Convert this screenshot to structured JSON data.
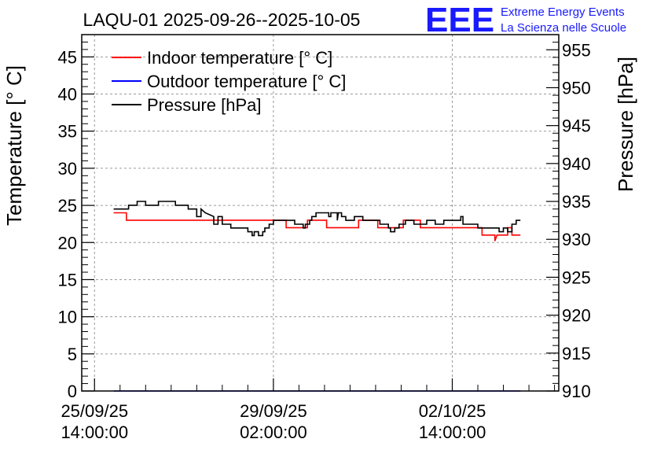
{
  "chart_data": {
    "type": "line",
    "title": "LAQU-01 2025-09-26--2025-10-05",
    "logo": {
      "letters": "EEE",
      "line1": "Extreme Energy Events",
      "line2": "La Scienza nelle Scuole"
    },
    "ylabel": "Temperature [° C]",
    "y2label": "Pressure [hPa]",
    "ylim": [
      0,
      48
    ],
    "y2lim": [
      910,
      957
    ],
    "yticks": [
      0,
      5,
      10,
      15,
      20,
      25,
      30,
      35,
      40,
      45
    ],
    "y2ticks": [
      910,
      915,
      920,
      925,
      930,
      935,
      940,
      945,
      950,
      955
    ],
    "xlim_hours": [
      -6,
      218
    ],
    "xticks": [
      {
        "hours": 0,
        "line1": "25/09/25",
        "line2": "14:00:00"
      },
      {
        "hours": 84,
        "line1": "29/09/25",
        "line2": "02:00:00"
      },
      {
        "hours": 168,
        "line1": "02/10/25",
        "line2": "14:00:00"
      }
    ],
    "grid": true,
    "legend": {
      "placement": "top-left",
      "entries": [
        {
          "label": "Indoor temperature [° C]",
          "color": "#ff0000"
        },
        {
          "label": "Outdoor temperature [° C]",
          "color": "#0000ff"
        },
        {
          "label": "Pressure [hPa]",
          "color": "#000000"
        }
      ]
    },
    "series": [
      {
        "name": "Indoor temperature [° C]",
        "axis": "left",
        "color": "#ff0000",
        "points": [
          [
            9,
            24
          ],
          [
            15,
            24
          ],
          [
            15,
            23
          ],
          [
            58,
            23
          ],
          [
            90,
            23
          ],
          [
            90,
            22
          ],
          [
            100,
            22
          ],
          [
            100,
            23
          ],
          [
            109,
            23
          ],
          [
            109,
            22
          ],
          [
            124,
            22
          ],
          [
            124,
            23
          ],
          [
            133,
            23
          ],
          [
            133,
            22
          ],
          [
            145,
            22
          ],
          [
            145,
            23
          ],
          [
            153,
            23
          ],
          [
            153,
            22
          ],
          [
            182,
            22
          ],
          [
            182,
            21
          ],
          [
            188,
            21
          ],
          [
            188,
            20.2
          ],
          [
            189,
            21
          ],
          [
            194,
            21
          ],
          [
            194,
            22
          ],
          [
            196,
            22
          ],
          [
            196,
            21
          ],
          [
            200,
            21
          ]
        ]
      },
      {
        "name": "Outdoor temperature [° C]",
        "axis": "left",
        "color": "#0000ff",
        "points": [
          [
            9,
            0
          ],
          [
            200,
            0
          ]
        ]
      },
      {
        "name": "Pressure [hPa]",
        "axis": "right",
        "color": "#000000",
        "points": [
          [
            9,
            934
          ],
          [
            16,
            934
          ],
          [
            16,
            934.5
          ],
          [
            20,
            934.5
          ],
          [
            20,
            935
          ],
          [
            24,
            935
          ],
          [
            24,
            934.5
          ],
          [
            30,
            934.5
          ],
          [
            30,
            935
          ],
          [
            38,
            935
          ],
          [
            38,
            934.5
          ],
          [
            44,
            934.5
          ],
          [
            44,
            934
          ],
          [
            48,
            934
          ],
          [
            48,
            933
          ],
          [
            50,
            933
          ],
          [
            50,
            934
          ],
          [
            52,
            933.5
          ],
          [
            56,
            933
          ],
          [
            56,
            932
          ],
          [
            58,
            932
          ],
          [
            58,
            933
          ],
          [
            60,
            933
          ],
          [
            60,
            932
          ],
          [
            64,
            932
          ],
          [
            64,
            931.5
          ],
          [
            72,
            931.5
          ],
          [
            72,
            931
          ],
          [
            74,
            931
          ],
          [
            74,
            930.5
          ],
          [
            75,
            930.5
          ],
          [
            75,
            931
          ],
          [
            77,
            931
          ],
          [
            77,
            930.5
          ],
          [
            79,
            930.5
          ],
          [
            79,
            931
          ],
          [
            80,
            931
          ],
          [
            80,
            931.5
          ],
          [
            82,
            931.5
          ],
          [
            82,
            932
          ],
          [
            84,
            932
          ],
          [
            84,
            932.5
          ],
          [
            94,
            932.5
          ],
          [
            94,
            932
          ],
          [
            98,
            932
          ],
          [
            98,
            931.5
          ],
          [
            99,
            931.5
          ],
          [
            99,
            932
          ],
          [
            101,
            932
          ],
          [
            101,
            932.5
          ],
          [
            102,
            932.5
          ],
          [
            102,
            933
          ],
          [
            104,
            933
          ],
          [
            104,
            933.5
          ],
          [
            110,
            933.5
          ],
          [
            110,
            933
          ],
          [
            111,
            933
          ],
          [
            111,
            933.5
          ],
          [
            114,
            933.5
          ],
          [
            114,
            932.5
          ],
          [
            114.5,
            933.5
          ],
          [
            116,
            933.5
          ],
          [
            116,
            933
          ],
          [
            118,
            933
          ],
          [
            118,
            932.5
          ],
          [
            122,
            932.5
          ],
          [
            122,
            933
          ],
          [
            126,
            933
          ],
          [
            126,
            932.5
          ],
          [
            134,
            932.5
          ],
          [
            134,
            932
          ],
          [
            138,
            932
          ],
          [
            138,
            931.5
          ],
          [
            139,
            931.5
          ],
          [
            139,
            931
          ],
          [
            141,
            931
          ],
          [
            141,
            931.5
          ],
          [
            143,
            931.5
          ],
          [
            143,
            932
          ],
          [
            146,
            932
          ],
          [
            146,
            932.5
          ],
          [
            150,
            932.5
          ],
          [
            150,
            932
          ],
          [
            156,
            932
          ],
          [
            156,
            932.5
          ],
          [
            160,
            932.5
          ],
          [
            160,
            932
          ],
          [
            164,
            932
          ],
          [
            164,
            932.5
          ],
          [
            172,
            932.5
          ],
          [
            172,
            933
          ],
          [
            173,
            933
          ],
          [
            173,
            932
          ],
          [
            180,
            932
          ],
          [
            180,
            931.5
          ],
          [
            190,
            931.5
          ],
          [
            190,
            931
          ],
          [
            192,
            931
          ],
          [
            192,
            931.5
          ],
          [
            194,
            931.5
          ],
          [
            194,
            931
          ],
          [
            196,
            931
          ],
          [
            196,
            932
          ],
          [
            198,
            932
          ],
          [
            198,
            932.5
          ],
          [
            200,
            932.5
          ]
        ]
      }
    ]
  }
}
